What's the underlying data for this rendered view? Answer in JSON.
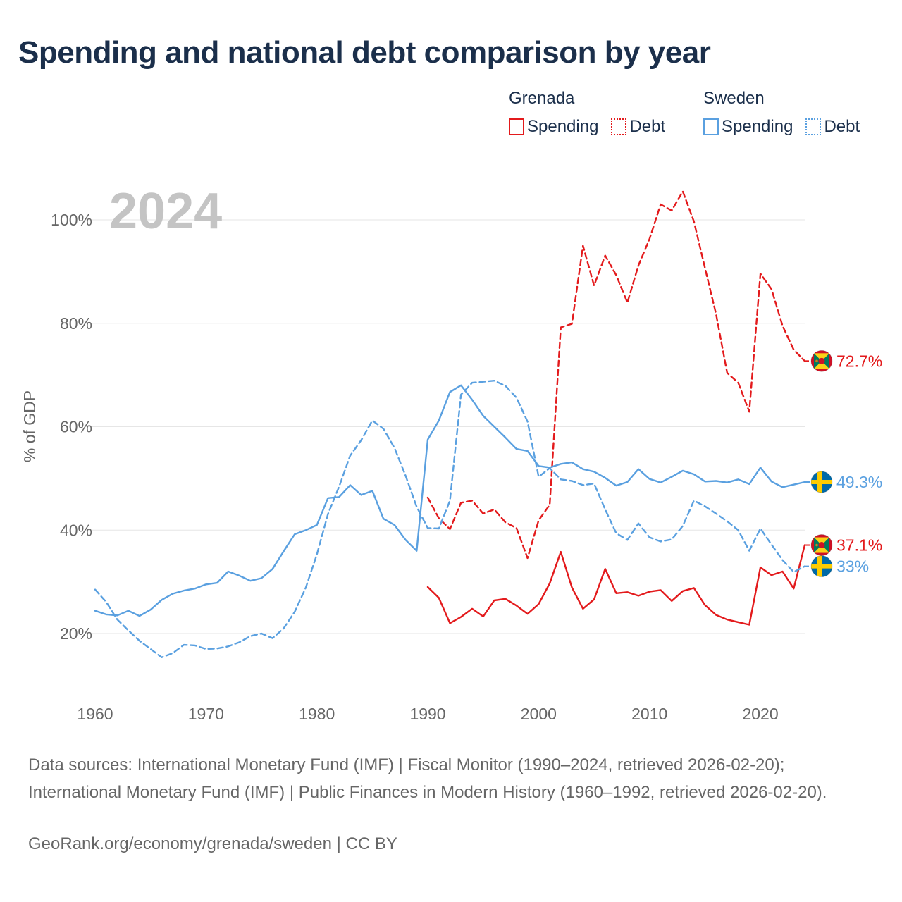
{
  "title": "Spending and national debt comparison by year",
  "year_watermark": "2024",
  "legend": {
    "groups": [
      {
        "name": "Grenada",
        "color": "#e31a1c",
        "items": [
          {
            "label": "Spending",
            "style": "solid"
          },
          {
            "label": "Debt",
            "style": "dotted"
          }
        ]
      },
      {
        "name": "Sweden",
        "color": "#5aa0e0",
        "items": [
          {
            "label": "Spending",
            "style": "solid"
          },
          {
            "label": "Debt",
            "style": "dotted"
          }
        ]
      }
    ]
  },
  "sources": "Data sources: International Monetary Fund (IMF) | Fiscal Monitor (1990–2024, retrieved 2026-02-20); International Monetary Fund (IMF) | Public Finances in Modern History (1960–1992, retrieved 2026-02-20).",
  "credit": "GeoRank.org/economy/grenada/sweden | CC BY",
  "chart_data": {
    "type": "line",
    "title": "Spending and national debt comparison by year",
    "xlabel": "",
    "ylabel": "% of GDP",
    "xlim": [
      1960,
      2024
    ],
    "ylim": [
      8,
      108
    ],
    "yticks": [
      20,
      40,
      60,
      80,
      100
    ],
    "ytick_labels": [
      "20%",
      "40%",
      "60%",
      "80%",
      "100%"
    ],
    "xticks": [
      1960,
      1970,
      1980,
      1990,
      2000,
      2010,
      2020
    ],
    "xtick_labels": [
      "1960",
      "1970",
      "1980",
      "1990",
      "2000",
      "2010",
      "2020"
    ],
    "grid": true,
    "series": [
      {
        "name": "Grenada Spending",
        "country": "Grenada",
        "metric": "Spending",
        "color": "#e31a1c",
        "dash": "solid",
        "flag": "grenada",
        "end_label": "37.1%",
        "x": [
          1990,
          1991,
          1992,
          1993,
          1994,
          1995,
          1996,
          1997,
          1998,
          1999,
          2000,
          2001,
          2002,
          2003,
          2004,
          2005,
          2006,
          2007,
          2008,
          2009,
          2010,
          2011,
          2012,
          2013,
          2014,
          2015,
          2016,
          2017,
          2018,
          2019,
          2020,
          2021,
          2022,
          2023,
          2024
        ],
        "y": [
          29.0,
          26.9,
          22.0,
          23.2,
          24.8,
          23.3,
          26.4,
          26.7,
          25.4,
          23.8,
          25.7,
          29.7,
          35.8,
          28.9,
          24.8,
          26.6,
          32.5,
          27.8,
          28.0,
          27.3,
          28.1,
          28.4,
          26.3,
          28.2,
          28.8,
          25.5,
          23.6,
          22.7,
          22.2,
          21.7,
          32.8,
          31.3,
          32.0,
          28.7,
          37.1
        ]
      },
      {
        "name": "Grenada Debt",
        "country": "Grenada",
        "metric": "Debt",
        "color": "#e31a1c",
        "dash": "dashed",
        "flag": "grenada",
        "end_label": "72.7%",
        "x": [
          1990,
          1991,
          1992,
          1993,
          1994,
          1995,
          1996,
          1997,
          1998,
          1999,
          2000,
          2001,
          2002,
          2003,
          2004,
          2005,
          2006,
          2007,
          2008,
          2009,
          2010,
          2011,
          2012,
          2013,
          2014,
          2015,
          2016,
          2017,
          2018,
          2019,
          2020,
          2021,
          2022,
          2023,
          2024
        ],
        "y": [
          46.3,
          42.3,
          40.2,
          45.3,
          45.7,
          43.2,
          44.0,
          41.5,
          40.4,
          34.6,
          41.9,
          44.9,
          79.2,
          79.9,
          95.0,
          87.3,
          93.1,
          89.3,
          84.0,
          91.2,
          96.3,
          103.0,
          101.8,
          105.5,
          99.7,
          90.7,
          81.8,
          70.4,
          68.5,
          62.9,
          89.6,
          86.6,
          79.5,
          74.9,
          72.7
        ]
      },
      {
        "name": "Sweden Spending",
        "country": "Sweden",
        "metric": "Spending",
        "color": "#5aa0e0",
        "dash": "solid",
        "flag": "sweden",
        "end_label": "49.3%",
        "x": [
          1960,
          1961,
          1962,
          1963,
          1964,
          1965,
          1966,
          1967,
          1968,
          1969,
          1970,
          1971,
          1972,
          1973,
          1974,
          1975,
          1976,
          1977,
          1978,
          1979,
          1980,
          1981,
          1982,
          1983,
          1984,
          1985,
          1986,
          1987,
          1988,
          1989,
          1990,
          1991,
          1992,
          1993,
          1994,
          1995,
          1996,
          1997,
          1998,
          1999,
          2000,
          2001,
          2002,
          2003,
          2004,
          2005,
          2006,
          2007,
          2008,
          2009,
          2010,
          2011,
          2012,
          2013,
          2014,
          2015,
          2016,
          2017,
          2018,
          2019,
          2020,
          2021,
          2022,
          2023,
          2024
        ],
        "y": [
          24.4,
          23.7,
          23.5,
          24.4,
          23.4,
          24.6,
          26.5,
          27.7,
          28.3,
          28.7,
          29.5,
          29.8,
          32.0,
          31.2,
          30.2,
          30.7,
          32.5,
          35.9,
          39.2,
          40.0,
          41.0,
          46.2,
          46.4,
          48.7,
          46.8,
          47.6,
          42.2,
          41.0,
          38.1,
          36.0,
          57.5,
          61.2,
          66.7,
          68.0,
          65.2,
          62.1,
          60.0,
          57.9,
          55.7,
          55.3,
          52.4,
          52.1,
          52.8,
          53.1,
          51.8,
          51.3,
          50.1,
          48.6,
          49.3,
          51.8,
          49.9,
          49.2,
          50.3,
          51.5,
          50.8,
          49.4,
          49.5,
          49.2,
          49.8,
          48.9,
          52.1,
          49.4,
          48.3,
          48.8,
          49.3
        ]
      },
      {
        "name": "Sweden Debt",
        "country": "Sweden",
        "metric": "Debt",
        "color": "#5aa0e0",
        "dash": "dashed",
        "flag": "sweden",
        "end_label": "33%",
        "x": [
          1960,
          1961,
          1962,
          1963,
          1964,
          1965,
          1966,
          1967,
          1968,
          1969,
          1970,
          1971,
          1972,
          1973,
          1974,
          1975,
          1976,
          1977,
          1978,
          1979,
          1980,
          1981,
          1982,
          1983,
          1984,
          1985,
          1986,
          1987,
          1988,
          1989,
          1990,
          1991,
          1992,
          1993,
          1994,
          1995,
          1996,
          1997,
          1998,
          1999,
          2000,
          2001,
          2002,
          2003,
          2004,
          2005,
          2006,
          2007,
          2008,
          2009,
          2010,
          2011,
          2012,
          2013,
          2014,
          2015,
          2016,
          2017,
          2018,
          2019,
          2020,
          2021,
          2022,
          2023,
          2024
        ],
        "y": [
          28.5,
          26.1,
          22.7,
          20.6,
          18.6,
          17.0,
          15.4,
          16.2,
          17.8,
          17.7,
          17.0,
          17.1,
          17.5,
          18.3,
          19.5,
          20.0,
          19.1,
          21.0,
          24.2,
          28.9,
          35.3,
          43.1,
          48.4,
          54.4,
          57.4,
          61.2,
          59.6,
          55.9,
          50.5,
          44.5,
          40.4,
          40.3,
          45.7,
          66.2,
          68.5,
          68.7,
          68.9,
          67.9,
          65.6,
          61.0,
          50.3,
          52.0,
          49.8,
          49.5,
          48.7,
          49.0,
          44.0,
          39.4,
          38.1,
          41.3,
          38.6,
          37.8,
          38.2,
          40.8,
          45.7,
          44.6,
          43.2,
          41.7,
          40.0,
          36.0,
          40.3,
          37.2,
          34.2,
          31.9,
          33.0
        ]
      }
    ]
  }
}
